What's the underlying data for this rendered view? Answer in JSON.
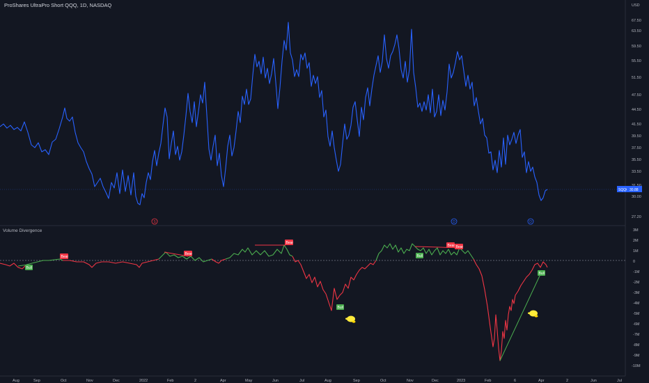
{
  "header": {
    "symbol_title": "ProShares UltraPro Short QQQ, 1D, NASDAQ"
  },
  "price_axis": {
    "currency": "USD",
    "ticks": [
      "67.50",
      "63.50",
      "59.50",
      "55.50",
      "51.50",
      "47.50",
      "44.50",
      "41.50",
      "39.50",
      "37.50",
      "35.50",
      "33.50",
      "31.50",
      "30.00",
      "27.20"
    ]
  },
  "price_badge": {
    "symbol": "SQQQ",
    "value": "30.88",
    "color": "#2962ff"
  },
  "indicator": {
    "title": "Volume Divergence",
    "ticks": [
      "3M",
      "2M",
      "1M",
      "0",
      "-1M",
      "-2M",
      "-3M",
      "-4M",
      "-5M",
      "-6M",
      "-7M",
      "-8M",
      "-9M",
      "-10M"
    ]
  },
  "time_axis": {
    "labels": [
      "Aug",
      "Sep",
      "Oct",
      "Nov",
      "Dec",
      "2022",
      "Feb",
      "2",
      "Apr",
      "May",
      "Jun",
      "Jul",
      "Aug",
      "Sep",
      "Oct",
      "Nov",
      "Dec",
      "2023",
      "Feb",
      "6",
      "Apr",
      "2",
      "Jun",
      "Jul"
    ]
  },
  "event_markers": [
    {
      "label": "S",
      "color": "#f23645"
    },
    {
      "label": "D",
      "color": "#2962ff"
    },
    {
      "label": "D",
      "color": "#2962ff"
    }
  ],
  "divergence_labels": [
    {
      "text": "Bull",
      "type": "bull"
    },
    {
      "text": "Bear",
      "type": "bear"
    },
    {
      "text": "Bear",
      "type": "bear"
    },
    {
      "text": "Bear",
      "type": "bear"
    },
    {
      "text": "Bull",
      "type": "bull"
    },
    {
      "text": "Bull",
      "type": "bull"
    },
    {
      "text": "Bear",
      "type": "bear"
    },
    {
      "text": "Bear",
      "type": "bear"
    },
    {
      "text": "Bull",
      "type": "bull"
    }
  ],
  "colors": {
    "price_line": "#2962ff",
    "bull": "#4caf50",
    "bear": "#f23645",
    "background": "#131722",
    "pointer_icon": "#ffeb3b"
  },
  "icons": [
    "pointing-hand-icon",
    "pointing-hand-icon"
  ]
}
